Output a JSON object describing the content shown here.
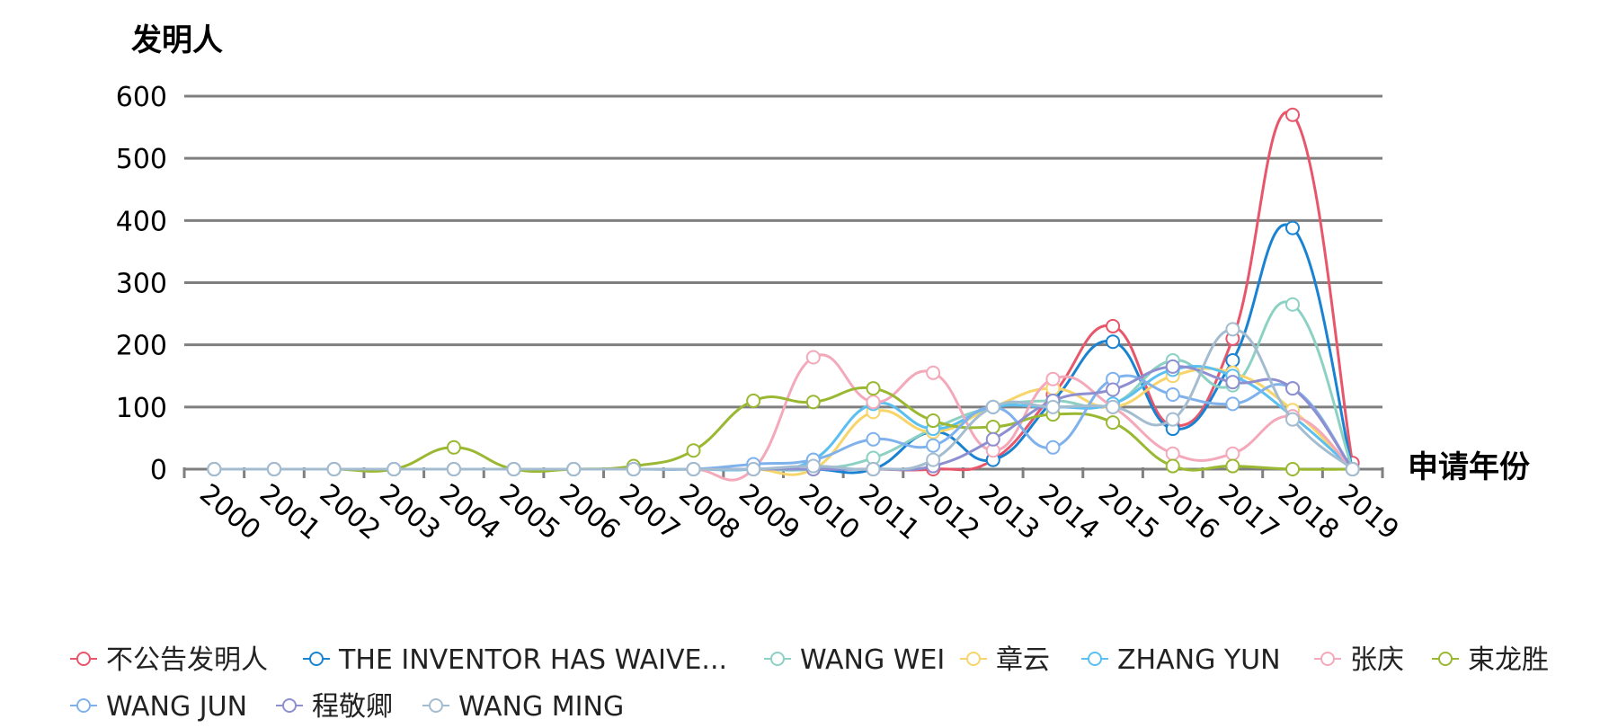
{
  "chart_data": {
    "type": "line",
    "ylabel": "发明人",
    "xlabel": "申请年份",
    "ylim": [
      0,
      600
    ],
    "yticks": [
      0,
      100,
      200,
      300,
      400,
      500,
      600
    ],
    "categories": [
      "2000",
      "2001",
      "2002",
      "2003",
      "2004",
      "2005",
      "2006",
      "2007",
      "2008",
      "2009",
      "2010",
      "2011",
      "2012",
      "2013",
      "2014",
      "2015",
      "2016",
      "2017",
      "2018",
      "2019"
    ],
    "grid": true,
    "legend_position": "bottom",
    "series": [
      {
        "name": "不公告发明人",
        "color": "#e8566b",
        "values": [
          0,
          0,
          0,
          0,
          0,
          0,
          0,
          0,
          0,
          0,
          0,
          0,
          0,
          15,
          120,
          230,
          70,
          210,
          570,
          10
        ]
      },
      {
        "name": "THE INVENTOR HAS WAIVE...",
        "color": "#1a83d1",
        "values": [
          0,
          0,
          0,
          0,
          0,
          0,
          0,
          0,
          0,
          0,
          0,
          0,
          60,
          15,
          110,
          205,
          65,
          175,
          388,
          0
        ]
      },
      {
        "name": "WANG WEI",
        "color": "#8dd1c4",
        "values": [
          0,
          0,
          0,
          0,
          0,
          0,
          0,
          0,
          0,
          0,
          0,
          18,
          65,
          100,
          110,
          105,
          175,
          135,
          265,
          0
        ]
      },
      {
        "name": "章云",
        "color": "#f7d56b",
        "values": [
          0,
          0,
          0,
          0,
          0,
          0,
          0,
          0,
          0,
          0,
          0,
          92,
          60,
          100,
          130,
          100,
          150,
          155,
          95,
          0
        ]
      },
      {
        "name": "ZHANG YUN",
        "color": "#5bbff0",
        "values": [
          0,
          0,
          0,
          0,
          0,
          0,
          0,
          0,
          0,
          0,
          15,
          105,
          65,
          100,
          100,
          105,
          160,
          150,
          85,
          0
        ]
      },
      {
        "name": "张庆",
        "color": "#f4a9bb",
        "values": [
          0,
          0,
          0,
          0,
          0,
          0,
          0,
          0,
          0,
          0,
          180,
          108,
          155,
          30,
          145,
          100,
          25,
          25,
          85,
          0
        ]
      },
      {
        "name": "束龙胜",
        "color": "#9ab832",
        "values": [
          0,
          0,
          0,
          0,
          35,
          0,
          0,
          5,
          30,
          110,
          108,
          130,
          78,
          68,
          88,
          75,
          5,
          5,
          0,
          0
        ]
      },
      {
        "name": "WANG JUN",
        "color": "#7fb2ec",
        "values": [
          0,
          0,
          0,
          0,
          0,
          0,
          0,
          0,
          0,
          8,
          15,
          48,
          38,
          100,
          35,
          145,
          120,
          105,
          130,
          0
        ]
      },
      {
        "name": "程敬卿",
        "color": "#8d8fd0",
        "values": [
          0,
          0,
          0,
          0,
          0,
          0,
          0,
          0,
          0,
          0,
          0,
          0,
          5,
          48,
          110,
          128,
          165,
          140,
          130,
          0
        ]
      },
      {
        "name": "WANG MING",
        "color": "#a4bccf",
        "values": [
          0,
          0,
          0,
          0,
          0,
          0,
          0,
          0,
          0,
          0,
          5,
          0,
          15,
          100,
          100,
          100,
          80,
          225,
          80,
          0
        ]
      }
    ]
  }
}
